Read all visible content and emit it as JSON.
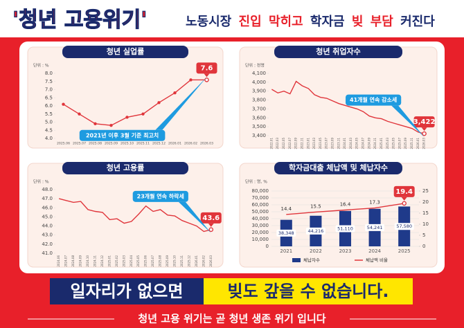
{
  "header": {
    "title": "'청년 고용위기'",
    "words": [
      "노동시장",
      "진입",
      "막히고",
      "학자금",
      "빚",
      "부담",
      "커진다"
    ]
  },
  "banner": [
    "일자리가 없으면",
    "빚도 갚을 수 없습니다."
  ],
  "tagline": "청년 고용 위기는 곧 청년 생존 위기 입니다",
  "chart_data": [
    {
      "type": "line",
      "title": "청년 실업률",
      "unit": "단위 : %",
      "color": "#e0353b",
      "markers": true,
      "categories": [
        "2025.06",
        "2025.07",
        "2025.08",
        "2025.09",
        "2025.10",
        "2025.11",
        "2025.12",
        "2026.01",
        "2026.02",
        "2026.03"
      ],
      "values": [
        6.1,
        5.5,
        4.9,
        4.8,
        5.3,
        5.5,
        6.2,
        6.8,
        7.6,
        7.6
      ],
      "value_labels": [
        null,
        null,
        null,
        null,
        null,
        null,
        null,
        null,
        null,
        "7.6"
      ],
      "ylim": [
        4.0,
        8.0
      ],
      "yticks": [
        {
          "value": 4.0,
          "label": "4.0"
        },
        4.5,
        {
          "value": 5.0,
          "label": "5.0"
        },
        5.5,
        {
          "value": 6.0,
          "label": "6.0"
        },
        6.5,
        {
          "value": 7.0,
          "label": "7.0"
        },
        7.5,
        {
          "value": 8.0,
          "label": "8.0"
        }
      ],
      "annotation": "2021년 이후 3월 기준 최고치",
      "grid": false
    },
    {
      "type": "line",
      "title": "청년 취업자수",
      "unit": "단위 : 천명",
      "color": "#e0353b",
      "markers": false,
      "categories": [
        "2022.01",
        "2022.03",
        "2022.05",
        "2022.07",
        "2022.09",
        "2022.11",
        "2023.01",
        "2023.03",
        "2023.05",
        "2023.07",
        "2023.09",
        "2023.11",
        "2024.01",
        "2024.03",
        "2024.05",
        "2024.07",
        "2024.09",
        "2024.11",
        "2025.01",
        "2025.03",
        "2025.05",
        "2025.07",
        "2025.09",
        "2025.11",
        "2026.01",
        "2026.03"
      ],
      "values": [
        3920,
        3880,
        3900,
        3870,
        4010,
        3960,
        3930,
        3860,
        3830,
        3820,
        3790,
        3760,
        3740,
        3720,
        3700,
        3670,
        3620,
        3600,
        3590,
        3560,
        3540,
        3520,
        3500,
        3480,
        3440,
        3422
      ],
      "value_labels": [
        null,
        null,
        null,
        null,
        null,
        null,
        null,
        null,
        null,
        null,
        null,
        null,
        null,
        null,
        null,
        null,
        null,
        null,
        null,
        null,
        null,
        null,
        null,
        null,
        null,
        "3,422"
      ],
      "ylim": [
        3400,
        4100
      ],
      "yticks": [
        {
          "value": 3400,
          "label": "3,400"
        },
        {
          "value": 3500,
          "label": "3,500"
        },
        {
          "value": 3600,
          "label": "3,600"
        },
        {
          "value": 3700,
          "label": "3,700"
        },
        {
          "value": 3800,
          "label": "3,800"
        },
        {
          "value": 3900,
          "label": "3,900"
        },
        {
          "value": 4000,
          "label": "4,000"
        },
        {
          "value": 4100,
          "label": "4,100"
        }
      ],
      "annotation": "41개월 연속 감소세",
      "grid": false
    },
    {
      "type": "line",
      "title": "청년 고용률",
      "unit": "단위 : %",
      "color": "#e0353b",
      "markers": false,
      "categories": [
        "2024.06",
        "2024.07",
        "2024.08",
        "2024.09",
        "2024.10",
        "2024.11",
        "2024.12",
        "2025.01",
        "2025.02",
        "2025.03",
        "2025.04",
        "2025.05",
        "2025.06",
        "2025.07",
        "2025.08",
        "2025.09",
        "2025.10",
        "2025.11",
        "2025.12",
        "2026.01",
        "2026.02",
        "2026.03"
      ],
      "values": [
        47.0,
        46.8,
        46.6,
        46.7,
        45.8,
        45.6,
        45.5,
        44.7,
        44.8,
        44.3,
        44.5,
        45.3,
        46.2,
        45.6,
        45.8,
        45.2,
        45.1,
        44.6,
        44.3,
        44.0,
        43.4,
        43.6
      ],
      "value_labels": [
        null,
        null,
        null,
        null,
        null,
        null,
        null,
        null,
        null,
        null,
        null,
        null,
        null,
        null,
        null,
        null,
        null,
        null,
        null,
        null,
        null,
        "43.6"
      ],
      "ylim": [
        41.0,
        48.0
      ],
      "yticks": [
        {
          "value": 41,
          "label": "41.0"
        },
        {
          "value": 42,
          "label": "42.0"
        },
        {
          "value": 43,
          "label": "43.0"
        },
        {
          "value": 44,
          "label": "44.0"
        },
        {
          "value": 45,
          "label": "45.0"
        },
        {
          "value": 46,
          "label": "46.0"
        },
        {
          "value": 47,
          "label": "47.0"
        },
        {
          "value": 48,
          "label": "48.0"
        }
      ],
      "annotation": "23개월 연속 하락세",
      "grid": false
    },
    {
      "type": "bar",
      "title": "학자금대출 체납액 및 체납자수",
      "unit": "단위 : 명, %",
      "categories": [
        "2021",
        "2022",
        "2023",
        "2024",
        "2025"
      ],
      "series": [
        {
          "name": "체납자수",
          "color": "#1f3a8a",
          "values": [
            38348,
            44216,
            51110,
            54241,
            57580
          ],
          "value_labels": [
            "38,348",
            "44,216",
            "51,110",
            "54,241",
            "57,580"
          ]
        },
        {
          "name": "체납액 비율",
          "type": "line",
          "axis": "y2",
          "color": "#e0353b",
          "values": [
            14.4,
            15.5,
            16.4,
            17.3,
            19.4
          ]
        }
      ],
      "ylim": [
        0,
        80000
      ],
      "yticks": [
        0,
        {
          "value": 10000,
          "label": "10,000"
        },
        {
          "value": 20000,
          "label": "20,000"
        },
        {
          "value": 30000,
          "label": "30,000"
        },
        {
          "value": 40000,
          "label": "40,000"
        },
        {
          "value": 50000,
          "label": "50,000"
        },
        {
          "value": 60000,
          "label": "60,000"
        },
        {
          "value": 70000,
          "label": "70,000"
        },
        {
          "value": 80000,
          "label": "80,000"
        }
      ],
      "y2lim": [
        0,
        25
      ],
      "y2ticks": [
        0,
        5,
        10,
        15,
        20,
        25
      ],
      "grid": true
    }
  ]
}
